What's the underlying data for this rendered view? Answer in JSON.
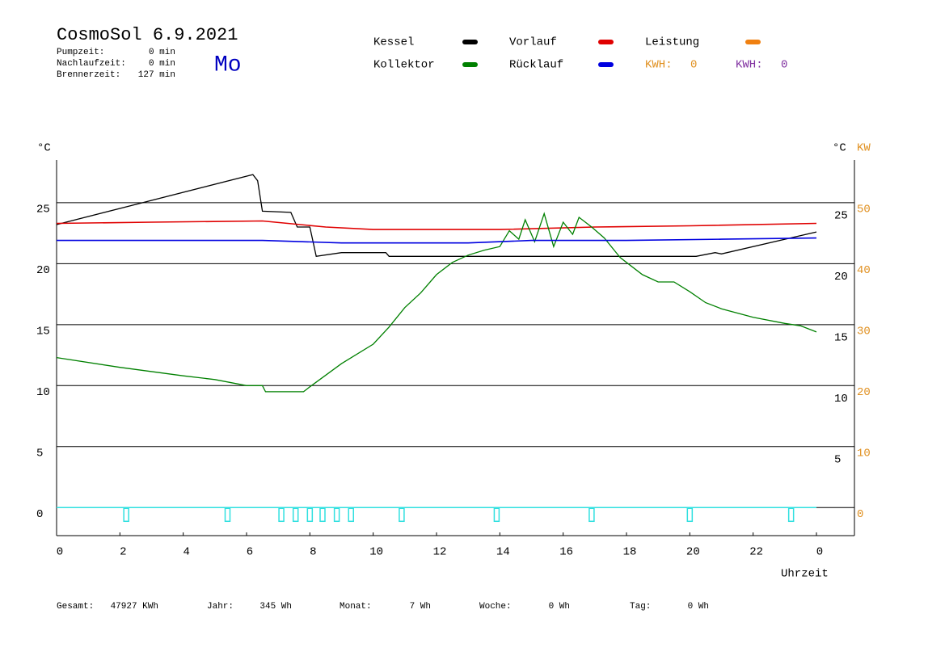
{
  "chart_data": {
    "type": "line",
    "title": "CosmoSol 6.9.2021",
    "weekday": "Mo",
    "info": [
      {
        "label": "Pumpzeit:",
        "value": "0 min"
      },
      {
        "label": "Nachlaufzeit:",
        "value": "0 min"
      },
      {
        "label": "Brennerzeit:",
        "value": "127 min"
      }
    ],
    "y_label": "°C",
    "y_label_right": "°C",
    "y2_label": "KW",
    "x_label": "Uhrzeit",
    "xlim": [
      0,
      24
    ],
    "xticks": [
      0,
      2,
      4,
      6,
      8,
      10,
      12,
      14,
      16,
      18,
      20,
      22,
      {
        "value": 24,
        "label": "0"
      }
    ],
    "ylim": [
      -2.3,
      28.5
    ],
    "yticks": [
      0,
      5,
      10,
      15,
      20,
      25
    ],
    "yticks_right": [
      5,
      10,
      15,
      20,
      25
    ],
    "y2lim": [
      -4.6,
      57
    ],
    "y2ticks": [
      0,
      10,
      20,
      30,
      40,
      50
    ],
    "y2_color": "#e09020",
    "grid": true,
    "series": [
      {
        "name": "Kessel",
        "color": "#000000",
        "x": [
          0,
          6.2,
          6.35,
          6.5,
          7.4,
          7.6,
          8.0,
          8.2,
          9.0,
          10.4,
          10.5,
          20.2,
          20.8,
          21.0,
          24
        ],
        "values": [
          23.2,
          27.3,
          26.8,
          24.3,
          24.2,
          23.0,
          23.0,
          20.6,
          20.9,
          20.9,
          20.6,
          20.6,
          20.9,
          20.8,
          22.6
        ]
      },
      {
        "name": "Vorlauf",
        "color": "#e00000",
        "x": [
          0,
          3,
          6.5,
          8.5,
          10,
          14,
          17,
          20,
          24
        ],
        "values": [
          23.3,
          23.4,
          23.5,
          23.0,
          22.8,
          22.8,
          23.0,
          23.1,
          23.3
        ]
      },
      {
        "name": "Leistung",
        "color": "#f08010",
        "x": [],
        "values": []
      },
      {
        "name": "Kollektor",
        "color": "#008000",
        "x": [
          0,
          2,
          4,
          5,
          6,
          6.5,
          6.6,
          7.8,
          8,
          9,
          10,
          10.5,
          11,
          11.5,
          12,
          12.5,
          13,
          13.5,
          14,
          14.3,
          14.6,
          14.8,
          15.1,
          15.4,
          15.7,
          16,
          16.3,
          16.5,
          16.9,
          17.3,
          17.8,
          18,
          18.5,
          19,
          19.5,
          20,
          20.5,
          21,
          22,
          23,
          23.5,
          24
        ],
        "values": [
          12.3,
          11.5,
          10.8,
          10.5,
          10.0,
          10.0,
          9.5,
          9.5,
          9.9,
          11.8,
          13.4,
          14.8,
          16.4,
          17.6,
          19.1,
          20.1,
          20.7,
          21.1,
          21.4,
          22.7,
          22.0,
          23.6,
          21.8,
          24.1,
          21.4,
          23.4,
          22.4,
          23.8,
          23.0,
          22.1,
          20.5,
          20.1,
          19.1,
          18.5,
          18.5,
          17.7,
          16.8,
          16.3,
          15.6,
          15.1,
          14.9,
          14.4
        ]
      },
      {
        "name": "Rücklauf",
        "color": "#0000e0",
        "x": [
          0,
          6.5,
          9,
          13,
          15,
          18,
          21,
          24
        ],
        "values": [
          21.9,
          21.9,
          21.7,
          21.7,
          21.9,
          21.9,
          22.0,
          22.1
        ]
      }
    ],
    "pump_markers": {
      "color": "#30e0e0",
      "x": [
        2.2,
        5.4,
        7.1,
        7.55,
        8.0,
        8.4,
        8.85,
        9.3,
        10.9,
        13.9,
        16.9,
        20.0,
        23.2
      ]
    },
    "kwh": [
      {
        "label": "KWH:",
        "value": 0,
        "color": "#e09020"
      },
      {
        "label": "KWH:",
        "value": 0,
        "color": "#8030a0"
      }
    ],
    "footer": [
      {
        "label": "Gesamt:",
        "value": "47927 KWh"
      },
      {
        "label": "Jahr:",
        "value": "345 Wh"
      },
      {
        "label": "Monat:",
        "value": "7 Wh"
      },
      {
        "label": "Woche:",
        "value": "0 Wh"
      },
      {
        "label": "Tag:",
        "value": "0 Wh"
      }
    ]
  }
}
